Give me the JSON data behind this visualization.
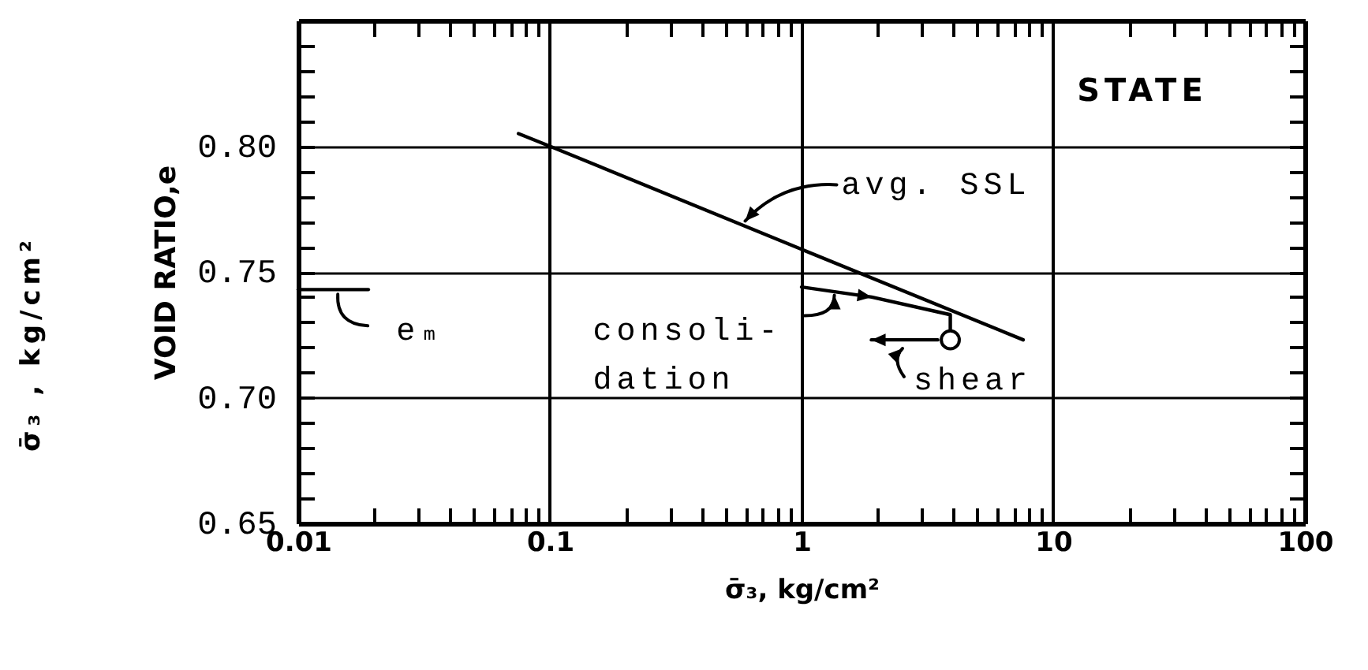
{
  "chart_data": {
    "type": "line",
    "xlabel": "σ̄₃, kg/cm²",
    "ylabel": "VOID RATIO,e",
    "log": "x",
    "grid": true,
    "xlim": [
      0.01,
      100
    ],
    "ylim": [
      0.65,
      0.85
    ],
    "xticks": [
      0.01,
      {
        "value": 0.02,
        "label": null
      },
      {
        "value": 0.03,
        "label": null
      },
      {
        "value": 0.04,
        "label": null
      },
      {
        "value": 0.05,
        "label": null
      },
      {
        "value": 0.06,
        "label": null
      },
      {
        "value": 0.07,
        "label": null
      },
      {
        "value": 0.08,
        "label": null
      },
      {
        "value": 0.09,
        "label": null
      },
      0.1,
      {
        "value": 0.2,
        "label": null
      },
      {
        "value": 0.3,
        "label": null
      },
      {
        "value": 0.4,
        "label": null
      },
      {
        "value": 0.5,
        "label": null
      },
      {
        "value": 0.6,
        "label": null
      },
      {
        "value": 0.7,
        "label": null
      },
      {
        "value": 0.8,
        "label": null
      },
      {
        "value": 0.9,
        "label": null
      },
      1,
      {
        "value": 2,
        "label": null
      },
      {
        "value": 3,
        "label": null
      },
      {
        "value": 4,
        "label": null
      },
      {
        "value": 5,
        "label": null
      },
      {
        "value": 6,
        "label": null
      },
      {
        "value": 7,
        "label": null
      },
      {
        "value": 8,
        "label": null
      },
      {
        "value": 9,
        "label": null
      },
      10,
      {
        "value": 20,
        "label": null
      },
      {
        "value": 30,
        "label": null
      },
      {
        "value": 40,
        "label": null
      },
      {
        "value": 50,
        "label": null
      },
      {
        "value": 60,
        "label": null
      },
      {
        "value": 70,
        "label": null
      },
      {
        "value": 80,
        "label": null
      },
      {
        "value": 90,
        "label": null
      },
      100
    ],
    "yticks": [
      0.65,
      {
        "value": 0.66,
        "label": null
      },
      {
        "value": 0.67,
        "label": null
      },
      {
        "value": 0.68,
        "label": null
      },
      {
        "value": 0.69,
        "label": null
      },
      {
        "value": 0.7,
        "label": "0.70"
      },
      {
        "value": 0.71,
        "label": null
      },
      {
        "value": 0.72,
        "label": null
      },
      {
        "value": 0.73,
        "label": null
      },
      {
        "value": 0.74,
        "label": null
      },
      0.75,
      {
        "value": 0.76,
        "label": null
      },
      {
        "value": 0.77,
        "label": null
      },
      {
        "value": 0.78,
        "label": null
      },
      {
        "value": 0.79,
        "label": null
      },
      {
        "value": 0.8,
        "label": "0.80"
      },
      {
        "value": 0.81,
        "label": null
      },
      {
        "value": 0.82,
        "label": null
      },
      {
        "value": 0.83,
        "label": null
      },
      {
        "value": 0.84,
        "label": null
      }
    ],
    "series": [
      {
        "color": "#000000",
        "x": [
          0.075,
          0.1,
          1,
          7.6
        ],
        "values": [
          0.805,
          0.8,
          0.759,
          0.723
        ]
      },
      {
        "color": "#000000",
        "x": [
          1,
          1.9,
          3.9,
          3.9
        ],
        "values": [
          0.744,
          0.74,
          0.733,
          0.727
        ]
      },
      {
        "color": "#000000",
        "x": [
          0.01,
          0.019
        ],
        "values": [
          0.743,
          0.743
        ]
      },
      {
        "type": "scatter",
        "color": "#000000",
        "x": [
          3.9
        ],
        "values": [
          0.723
        ],
        "marker": "circle"
      }
    ],
    "annotations": [
      "STATE",
      {
        "text": "avg. SSL",
        "x": 0.58,
        "y": 0.769
      },
      {
        "text": "consoli-\ndation",
        "x": 1.35,
        "y": 0.742
      },
      "shear",
      {
        "text": "eₘ",
        "x": 0.015,
        "y": 0.743
      },
      "σ̄₃ , kg/cm²"
    ]
  }
}
